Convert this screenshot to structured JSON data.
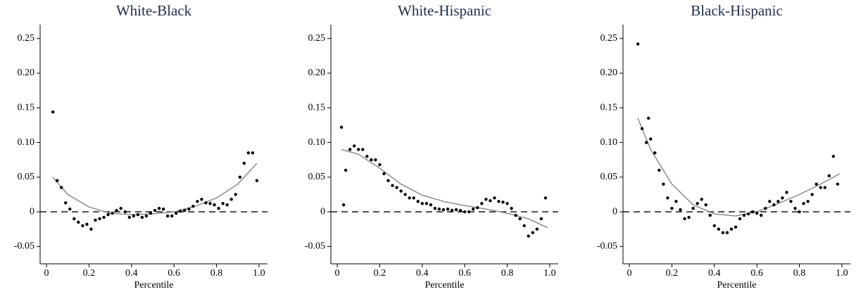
{
  "chart_data": [
    {
      "type": "scatter",
      "title": "White-Black",
      "xlabel": "Percentile",
      "xlim": [
        -0.03,
        1.04
      ],
      "ylim": [
        -0.075,
        0.27
      ],
      "xticks": [
        0,
        0.2,
        0.4,
        0.6,
        0.8,
        {
          "value": 1,
          "label": "1.0"
        }
      ],
      "yticks": [
        -0.05,
        0,
        0.05,
        {
          "value": 0.1,
          "label": "0.10"
        },
        0.15,
        {
          "value": 0.2,
          "label": "0.20"
        },
        0.25
      ],
      "refline": 0,
      "point_color": "#000000",
      "fit_color": "#8c8c8c",
      "x": [
        0.03,
        0.05,
        0.07,
        0.09,
        0.11,
        0.13,
        0.15,
        0.17,
        0.19,
        0.21,
        0.23,
        0.25,
        0.27,
        0.29,
        0.31,
        0.33,
        0.35,
        0.37,
        0.39,
        0.41,
        0.43,
        0.45,
        0.47,
        0.49,
        0.51,
        0.53,
        0.55,
        0.57,
        0.59,
        0.61,
        0.63,
        0.65,
        0.67,
        0.69,
        0.71,
        0.73,
        0.75,
        0.77,
        0.79,
        0.81,
        0.83,
        0.85,
        0.87,
        0.89,
        0.91,
        0.93,
        0.95,
        0.97,
        0.99
      ],
      "values": [
        0.144,
        0.045,
        0.035,
        0.013,
        0.004,
        -0.01,
        -0.015,
        -0.02,
        -0.018,
        -0.025,
        -0.012,
        -0.01,
        -0.008,
        -0.004,
        -0.002,
        0.002,
        0.005,
        0.0,
        -0.008,
        -0.006,
        -0.004,
        -0.008,
        -0.006,
        -0.002,
        0.002,
        0.005,
        0.004,
        -0.006,
        -0.006,
        -0.002,
        0.001,
        0.002,
        0.004,
        0.008,
        0.015,
        0.018,
        0.013,
        0.012,
        0.01,
        0.005,
        0.012,
        0.01,
        0.018,
        0.025,
        0.05,
        0.07,
        0.085,
        0.085,
        0.045
      ],
      "fit_x": [
        0.03,
        0.1,
        0.2,
        0.3,
        0.4,
        0.5,
        0.6,
        0.7,
        0.8,
        0.9,
        0.99
      ],
      "fit": [
        0.05,
        0.025,
        0.007,
        -0.002,
        -0.004,
        -0.003,
        0.0,
        0.008,
        0.02,
        0.04,
        0.07
      ]
    },
    {
      "type": "scatter",
      "title": "White-Hispanic",
      "xlabel": "Percentile",
      "xlim": [
        -0.03,
        1.04
      ],
      "ylim": [
        -0.075,
        0.27
      ],
      "xticks": [
        0,
        0.2,
        0.4,
        0.6,
        0.8,
        {
          "value": 1,
          "label": "1.0"
        }
      ],
      "yticks": [
        -0.05,
        0,
        0.05,
        {
          "value": 0.1,
          "label": "0.10"
        },
        0.15,
        {
          "value": 0.2,
          "label": "0.20"
        },
        0.25
      ],
      "refline": 0,
      "point_color": "#000000",
      "fit_color": "#8c8c8c",
      "x": [
        0.02,
        0.03,
        0.04,
        0.06,
        0.08,
        0.1,
        0.12,
        0.14,
        0.16,
        0.18,
        0.2,
        0.22,
        0.24,
        0.26,
        0.28,
        0.3,
        0.32,
        0.34,
        0.36,
        0.38,
        0.4,
        0.42,
        0.44,
        0.46,
        0.48,
        0.5,
        0.52,
        0.54,
        0.56,
        0.58,
        0.6,
        0.62,
        0.64,
        0.66,
        0.68,
        0.7,
        0.72,
        0.74,
        0.76,
        0.78,
        0.8,
        0.82,
        0.84,
        0.86,
        0.88,
        0.9,
        0.92,
        0.94,
        0.96,
        0.98
      ],
      "values": [
        0.122,
        0.01,
        0.06,
        0.09,
        0.095,
        0.09,
        0.09,
        0.08,
        0.075,
        0.075,
        0.068,
        0.055,
        0.045,
        0.038,
        0.035,
        0.03,
        0.025,
        0.02,
        0.02,
        0.015,
        0.012,
        0.012,
        0.01,
        0.005,
        0.004,
        0.003,
        0.004,
        0.002,
        0.003,
        0.002,
        0.0,
        0.0,
        0.004,
        0.006,
        0.012,
        0.018,
        0.016,
        0.02,
        0.015,
        0.014,
        0.012,
        0.005,
        -0.005,
        -0.01,
        -0.02,
        -0.035,
        -0.03,
        -0.025,
        -0.01,
        0.02
      ],
      "fit_x": [
        0.02,
        0.1,
        0.2,
        0.3,
        0.4,
        0.5,
        0.6,
        0.7,
        0.8,
        0.9,
        0.99
      ],
      "fit": [
        0.09,
        0.083,
        0.063,
        0.04,
        0.024,
        0.015,
        0.009,
        0.004,
        -0.002,
        -0.01,
        -0.023
      ]
    },
    {
      "type": "scatter",
      "title": "Black-Hispanic",
      "xlabel": "Percentile",
      "xlim": [
        -0.03,
        1.04
      ],
      "ylim": [
        -0.075,
        0.27
      ],
      "xticks": [
        0,
        0.2,
        0.4,
        0.6,
        0.8,
        {
          "value": 1,
          "label": "1.0"
        }
      ],
      "yticks": [
        -0.05,
        0,
        0.05,
        {
          "value": 0.1,
          "label": "0.10"
        },
        0.15,
        {
          "value": 0.2,
          "label": "0.20"
        },
        0.25
      ],
      "refline": 0,
      "point_color": "#000000",
      "fit_color": "#8c8c8c",
      "x": [
        0.04,
        0.06,
        0.08,
        0.09,
        0.1,
        0.12,
        0.14,
        0.16,
        0.18,
        0.2,
        0.22,
        0.24,
        0.26,
        0.28,
        0.3,
        0.32,
        0.34,
        0.36,
        0.38,
        0.4,
        0.42,
        0.44,
        0.46,
        0.48,
        0.5,
        0.52,
        0.54,
        0.56,
        0.58,
        0.6,
        0.62,
        0.64,
        0.66,
        0.68,
        0.7,
        0.72,
        0.74,
        0.76,
        0.78,
        0.8,
        0.82,
        0.84,
        0.86,
        0.88,
        0.9,
        0.92,
        0.94,
        0.96,
        0.98
      ],
      "values": [
        0.242,
        0.12,
        0.1,
        0.135,
        0.105,
        0.085,
        0.06,
        0.04,
        0.02,
        0.005,
        0.015,
        0.003,
        -0.01,
        -0.008,
        0.005,
        0.012,
        0.018,
        0.01,
        -0.005,
        -0.02,
        -0.025,
        -0.03,
        -0.03,
        -0.025,
        -0.022,
        -0.01,
        -0.005,
        -0.003,
        0.0,
        -0.002,
        -0.005,
        0.005,
        0.015,
        0.01,
        0.015,
        0.02,
        0.028,
        0.015,
        0.005,
        0.0,
        0.012,
        0.015,
        0.025,
        0.04,
        0.035,
        0.035,
        0.052,
        0.08,
        0.04
      ],
      "fit_x": [
        0.04,
        0.1,
        0.2,
        0.3,
        0.4,
        0.5,
        0.6,
        0.7,
        0.8,
        0.9,
        0.99
      ],
      "fit": [
        0.135,
        0.09,
        0.04,
        0.01,
        -0.003,
        -0.006,
        0.0,
        0.012,
        0.025,
        0.04,
        0.055
      ]
    }
  ]
}
